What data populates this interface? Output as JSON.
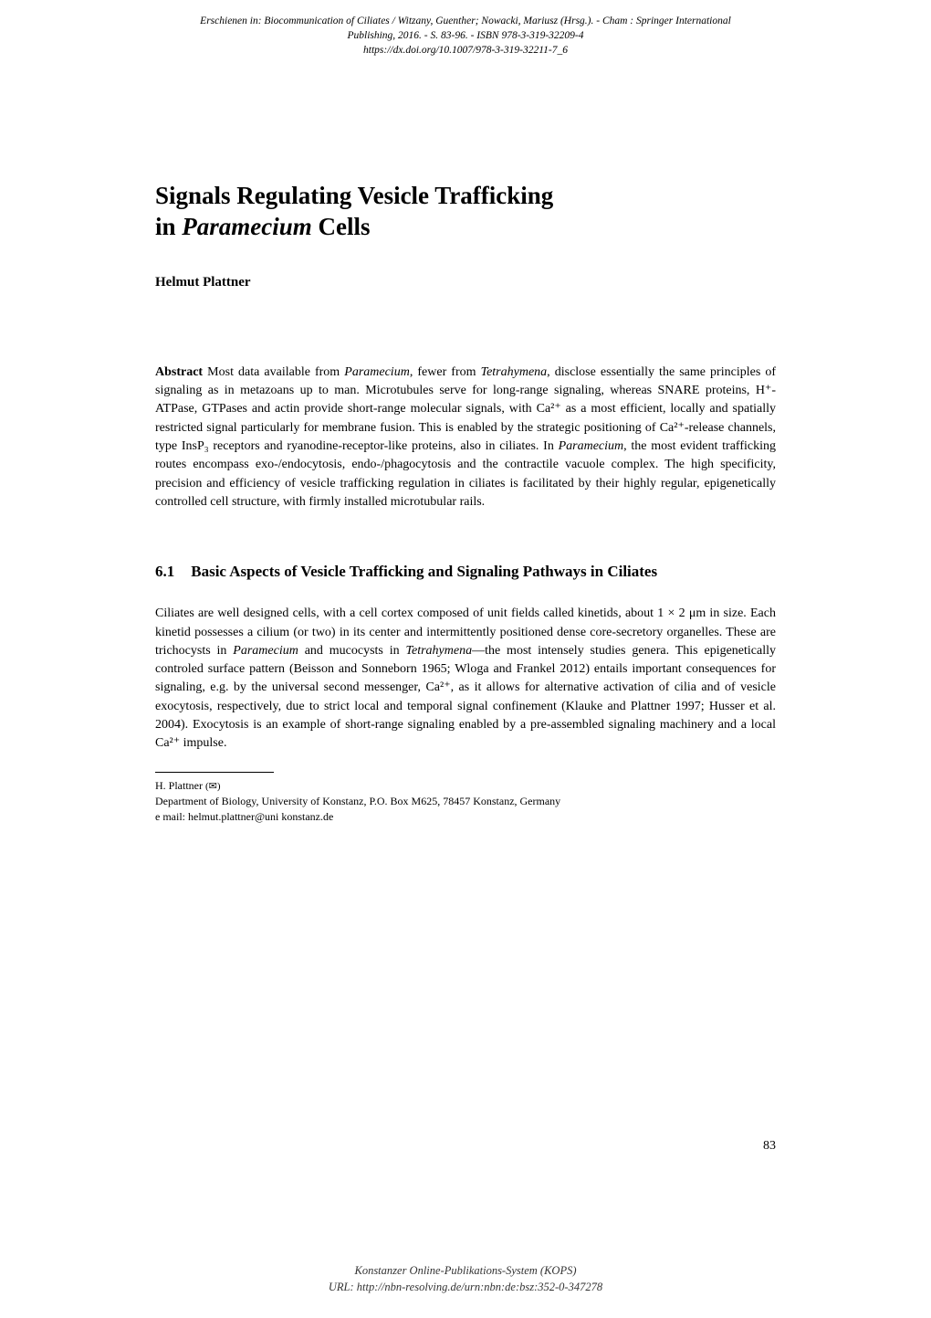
{
  "header": {
    "citation_line1": "Erschienen in: Biocommunication of Ciliates / Witzany, Guenther; Nowacki, Mariusz (Hrsg.). - Cham : Springer International",
    "citation_line2": "Publishing, 2016. - S. 83-96. - ISBN 978-3-319-32209-4",
    "citation_line3": "https://dx.doi.org/10.1007/978-3-319-32211-7_6"
  },
  "chapter": {
    "title_line1": "Signals Regulating Vesicle Trafficking",
    "title_line2": "in Paramecium Cells",
    "title_italic_word": "Paramecium"
  },
  "author": {
    "name": "Helmut Plattner"
  },
  "abstract": {
    "label": "Abstract",
    "text": "Most data available from Paramecium, fewer from Tetrahymena, disclose essentially the same principles of signaling as in metazoans up to man. Microtubules serve for long-range signaling, whereas SNARE proteins, H⁺-ATPase, GTPases and actin provide short-range molecular signals, with Ca²⁺ as a most efficient, locally and spatially restricted signal particularly for membrane fusion. This is enabled by the strategic positioning of Ca²⁺-release channels, type InsP₃ receptors and ryanodine-receptor-like proteins, also in ciliates. In Paramecium, the most evident trafficking routes encompass exo-/endocytosis, endo-/phagocytosis and the contractile vacuole complex. The high specificity, precision and efficiency of vesicle trafficking regulation in ciliates is facilitated by their highly regular, epigenetically controlled cell structure, with firmly installed microtubular rails."
  },
  "section": {
    "number": "6.1",
    "title": "Basic Aspects of Vesicle Trafficking and Signaling Pathways in Ciliates"
  },
  "body": {
    "paragraph1": "Ciliates are well designed cells, with a cell cortex composed of unit fields called kinetids, about 1 × 2 μm in size. Each kinetid possesses a cilium (or two) in its center and intermittently positioned dense core-secretory organelles. These are trichocysts in Paramecium and mucocysts in Tetrahymena—the most intensely studies genera. This epigenetically controled surface pattern (Beisson and Sonneborn 1965; Wloga and Frankel 2012) entails important consequences for signaling, e.g. by the universal second messenger, Ca²⁺, as it allows for alternative activation of cilia and of vesicle exocytosis, respectively, due to strict local and temporal signal confinement (Klauke and Plattner 1997; Husser et al. 2004). Exocytosis is an example of short-range signaling enabled by a pre-assembled signaling machinery and a local Ca²⁺ impulse."
  },
  "footnote": {
    "author_abbrev": "H. Plattner",
    "envelope": "(✉)",
    "affiliation": "Department of Biology, University of Konstanz, P.O. Box M625, 78457 Konstanz, Germany",
    "email": "e mail: helmut.plattner@uni konstanz.de"
  },
  "page_number": "83",
  "footer": {
    "kops_line1": "Konstanzer Online-Publikations-System (KOPS)",
    "kops_line2": "URL: http://nbn-resolving.de/urn:nbn:de:bsz:352-0-347278"
  }
}
